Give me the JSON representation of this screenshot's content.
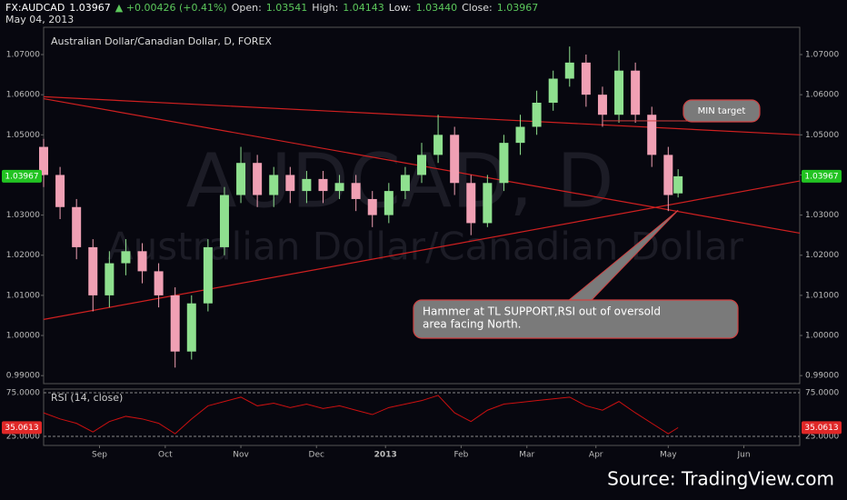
{
  "header": {
    "segments": [
      {
        "text": "FX:AUDCAD",
        "color": "#ffffff"
      },
      {
        "text": "1.03967",
        "color": "#ffffff"
      },
      {
        "text": "▲ +0.00426 (+0.41%)",
        "color": "#5cc85c"
      },
      {
        "text": "Open:",
        "color": "#dddddd"
      },
      {
        "text": "1.03541",
        "color": "#5cc85c"
      },
      {
        "text": "High:",
        "color": "#dddddd"
      },
      {
        "text": "1.04143",
        "color": "#5cc85c"
      },
      {
        "text": "Low:",
        "color": "#dddddd"
      },
      {
        "text": "1.03440",
        "color": "#5cc85c"
      },
      {
        "text": "Close:",
        "color": "#dddddd"
      },
      {
        "text": "1.03967",
        "color": "#5cc85c"
      }
    ],
    "date": "May 04, 2013"
  },
  "chart_data": {
    "type": "candlestick",
    "title": "Australian Dollar/Canadian Dollar, D, FOREX",
    "watermark": [
      "AUDCAD, D",
      "Australian Dollar/Canadian Dollar"
    ],
    "x": [
      0,
      5,
      10,
      15,
      20,
      25,
      30,
      35,
      40,
      45,
      50,
      55,
      60,
      65,
      70,
      75,
      80,
      85,
      90,
      95,
      100,
      105,
      110,
      115,
      120,
      125,
      130,
      135,
      140,
      145,
      150,
      155,
      160,
      165,
      170,
      175,
      180,
      185,
      190,
      193
    ],
    "open": [
      1.047,
      1.04,
      1.032,
      1.022,
      1.01,
      1.018,
      1.021,
      1.016,
      1.01,
      0.996,
      1.008,
      1.022,
      1.035,
      1.043,
      1.035,
      1.04,
      1.036,
      1.039,
      1.036,
      1.038,
      1.034,
      1.03,
      1.036,
      1.04,
      1.045,
      1.05,
      1.038,
      1.028,
      1.038,
      1.048,
      1.052,
      1.058,
      1.064,
      1.068,
      1.06,
      1.055,
      1.066,
      1.055,
      1.045,
      1.03541
    ],
    "high": [
      1.049,
      1.042,
      1.034,
      1.024,
      1.021,
      1.024,
      1.023,
      1.018,
      1.012,
      1.01,
      1.024,
      1.037,
      1.047,
      1.045,
      1.042,
      1.042,
      1.041,
      1.041,
      1.04,
      1.04,
      1.036,
      1.038,
      1.042,
      1.048,
      1.055,
      1.052,
      1.04,
      1.04,
      1.05,
      1.055,
      1.061,
      1.066,
      1.072,
      1.07,
      1.062,
      1.071,
      1.068,
      1.057,
      1.047,
      1.04143
    ],
    "low": [
      1.037,
      1.029,
      1.019,
      1.006,
      1.007,
      1.015,
      1.013,
      1.007,
      0.992,
      0.994,
      1.006,
      1.02,
      1.033,
      1.032,
      1.032,
      1.033,
      1.033,
      1.033,
      1.034,
      1.031,
      1.027,
      1.028,
      1.034,
      1.038,
      1.043,
      1.035,
      1.025,
      1.027,
      1.036,
      1.045,
      1.05,
      1.056,
      1.062,
      1.057,
      1.052,
      1.053,
      1.053,
      1.042,
      1.031,
      1.0344
    ],
    "close": [
      1.04,
      1.032,
      1.022,
      1.01,
      1.018,
      1.021,
      1.016,
      1.01,
      0.996,
      1.008,
      1.022,
      1.035,
      1.043,
      1.035,
      1.04,
      1.036,
      1.039,
      1.036,
      1.038,
      1.034,
      1.03,
      1.036,
      1.04,
      1.045,
      1.05,
      1.038,
      1.028,
      1.038,
      1.048,
      1.052,
      1.058,
      1.064,
      1.068,
      1.06,
      1.055,
      1.066,
      1.055,
      1.045,
      1.035,
      1.03967
    ],
    "up_color": "#8fe08f",
    "down_color": "#f0a0b4",
    "xlim": [
      0,
      230
    ],
    "xticks": [
      {
        "value": 17,
        "label": "Sep"
      },
      {
        "value": 37,
        "label": "Oct"
      },
      {
        "value": 60,
        "label": "Nov"
      },
      {
        "value": 83,
        "label": "Dec"
      },
      {
        "value": 104,
        "label": "2013"
      },
      {
        "value": 127,
        "label": "Feb"
      },
      {
        "value": 147,
        "label": "Mar"
      },
      {
        "value": 168,
        "label": "Apr"
      },
      {
        "value": 190,
        "label": "May"
      },
      {
        "value": 213,
        "label": "Jun"
      }
    ],
    "ylim": [
      0.988,
      1.0768
    ],
    "yticks": [
      {
        "value": 0.99,
        "label": "0.99000"
      },
      {
        "value": 1.0,
        "label": "1.00000"
      },
      {
        "value": 1.01,
        "label": "1.01000"
      },
      {
        "value": 1.02,
        "label": "1.02000"
      },
      {
        "value": 1.03,
        "label": "1.03000"
      },
      {
        "value": 1.04,
        "label": "1.04000"
      },
      {
        "value": 1.05,
        "label": "1.05000"
      },
      {
        "value": 1.06,
        "label": "1.06000"
      },
      {
        "value": 1.07,
        "label": "1.07000"
      }
    ],
    "last_price": 1.03967,
    "last_color": "#22c322",
    "trendlines": [
      {
        "x": [
          0,
          230
        ],
        "y": [
          1.0595,
          1.05
        ]
      },
      {
        "x": [
          0,
          230
        ],
        "y": [
          1.059,
          1.0255
        ]
      },
      {
        "x": [
          0,
          230
        ],
        "y": [
          1.004,
          1.0385
        ]
      }
    ],
    "trend_color": "#d02020",
    "annotations": [
      {
        "lines": [
          "MIN target"
        ],
        "x": 170,
        "y": 1.0535
      },
      {
        "lines": [
          "Hammer at TL SUPPORT,RSI out of oversold",
          "area facing North."
        ],
        "x": 193,
        "y": 1.0312
      }
    ],
    "rsi": {
      "name": "RSI (14, close)",
      "color": "#cc1010",
      "values": [
        52,
        45,
        40,
        30,
        42,
        48,
        45,
        40,
        28,
        45,
        60,
        65,
        70,
        60,
        63,
        58,
        62,
        57,
        60,
        55,
        50,
        58,
        62,
        66,
        72,
        52,
        42,
        55,
        62,
        64,
        66,
        68,
        70,
        60,
        55,
        65,
        52,
        40,
        28,
        35.0613
      ],
      "ylim": [
        14.6,
        79.2
      ],
      "yticks": [
        {
          "value": 25,
          "label": "25.0000"
        },
        {
          "value": 75,
          "label": "75.0000"
        }
      ],
      "last": 35.0613,
      "last_color": "#e02828"
    },
    "source": "Source: TradingView.com"
  }
}
